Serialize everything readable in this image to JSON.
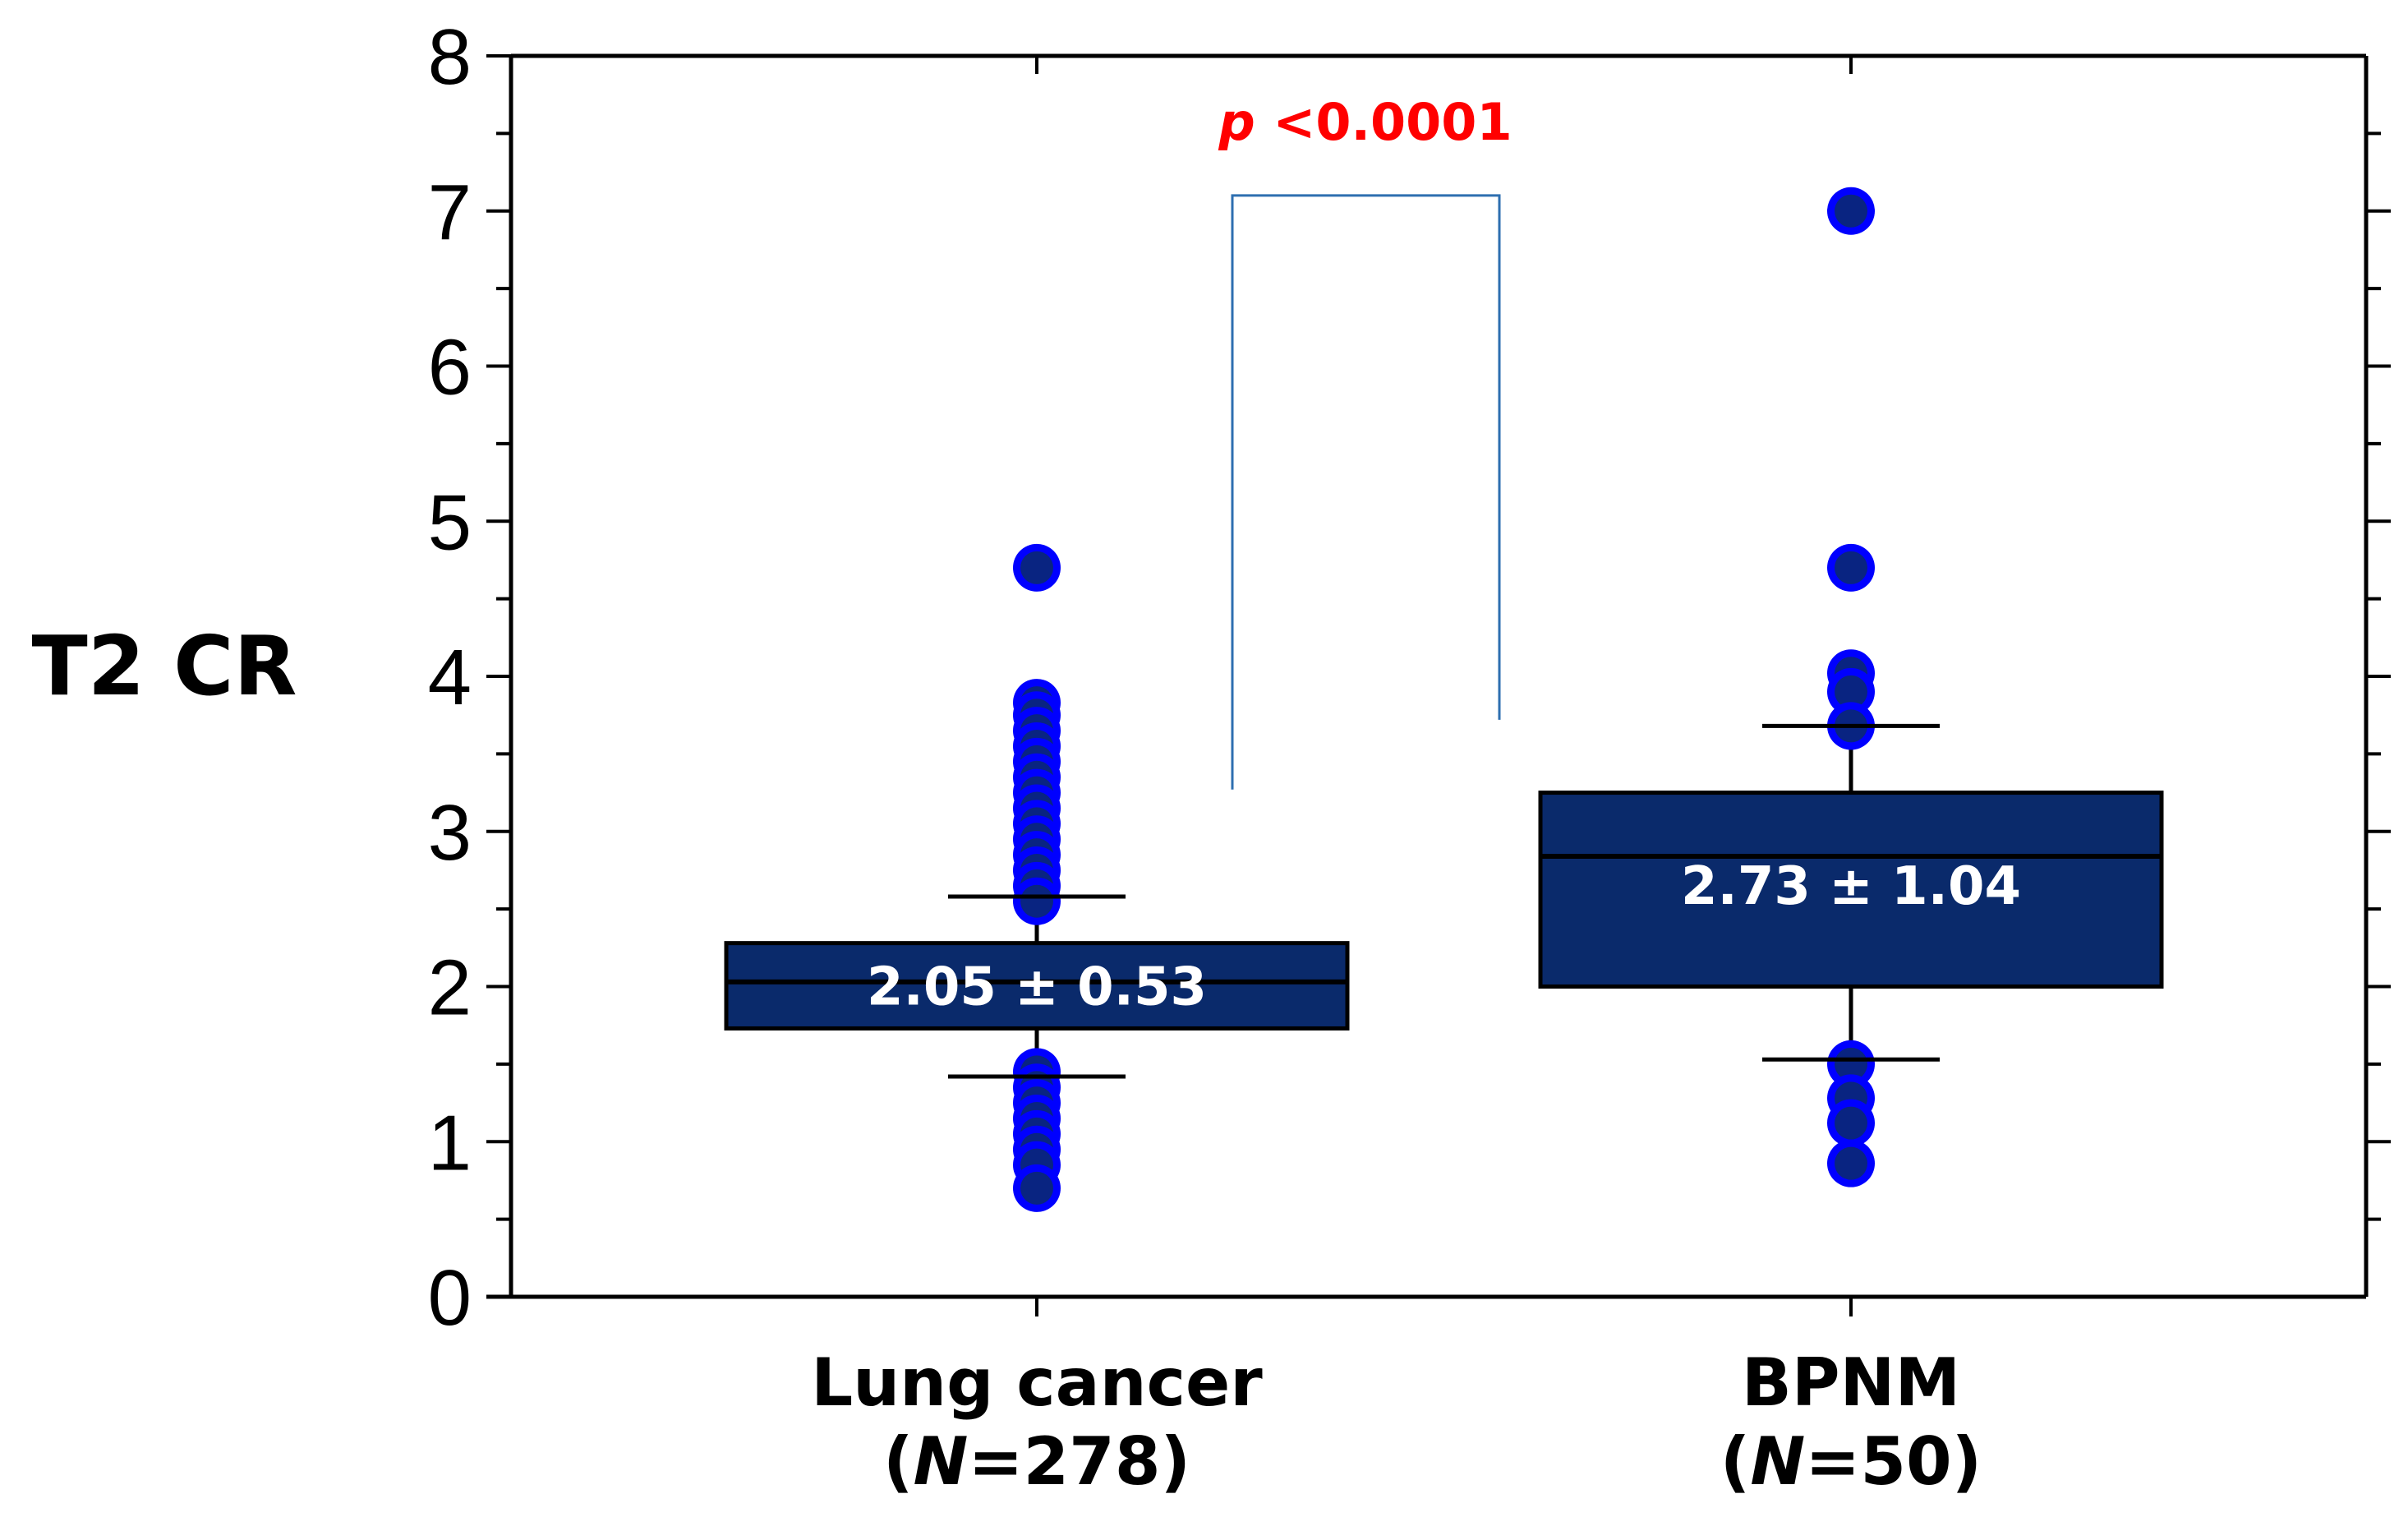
{
  "chart_data": {
    "type": "box",
    "ylabel": "T2 CR",
    "ylim": [
      0,
      8
    ],
    "yticks": [
      0,
      1,
      2,
      3,
      4,
      5,
      6,
      7,
      8
    ],
    "groups": [
      {
        "name": "Lung cancer",
        "n_label": "(N=278)",
        "n_prefix": "(",
        "n_italic": "N",
        "n_rest": "=278)",
        "mean_sd_label": "2.05 ± 0.53",
        "q1": 1.73,
        "median": 2.03,
        "q3": 2.28,
        "whisker_low": 1.42,
        "whisker_high": 2.58,
        "outliers": [
          4.7,
          3.83,
          3.75,
          3.65,
          3.55,
          3.45,
          3.35,
          3.25,
          3.15,
          3.05,
          2.95,
          2.85,
          2.75,
          2.65,
          2.55,
          1.45,
          1.35,
          1.25,
          1.15,
          1.05,
          0.95,
          0.85,
          0.7
        ]
      },
      {
        "name": "BPNM",
        "n_label": "(N=50)",
        "n_prefix": "(",
        "n_italic": "N",
        "n_rest": "=50)",
        "mean_sd_label": "2.73  ± 1.04",
        "q1": 2.0,
        "median": 2.84,
        "q3": 3.25,
        "whisker_low": 1.53,
        "whisker_high": 3.68,
        "outliers": [
          7.0,
          4.7,
          4.02,
          3.9,
          3.68,
          1.5,
          1.28,
          1.12,
          0.86
        ]
      }
    ],
    "comparison": {
      "label_italic": "p",
      "label_rest": " <0.0001",
      "left_y": 3.27,
      "right_y": 3.72,
      "top_y": 7.1
    }
  },
  "colors": {
    "box_fill": "#0a2a6b",
    "point_fill": "#0000ff",
    "point_core": "#0a2a6b",
    "bracket": "#2e6fb0",
    "pvalue": "#ff0000"
  }
}
